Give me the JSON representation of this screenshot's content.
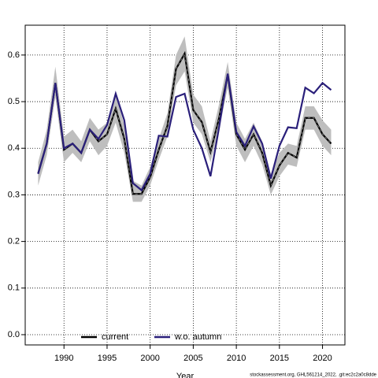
{
  "chart_data": {
    "type": "line",
    "x_label": "Year",
    "footer": "stockassessment.org, GHL561214_2022, .git:ec2c2a0c8dde",
    "x": [
      1987,
      1988,
      1989,
      1990,
      1991,
      1992,
      1993,
      1994,
      1995,
      1996,
      1997,
      1998,
      1999,
      2000,
      2001,
      2002,
      2003,
      2004,
      2005,
      2006,
      2007,
      2008,
      2009,
      2010,
      2011,
      2012,
      2013,
      2014,
      2015,
      2016,
      2017,
      2018,
      2019,
      2020,
      2021
    ],
    "series": [
      {
        "name": "current",
        "color": "#000000",
        "values": [
          0.346,
          0.41,
          0.54,
          0.397,
          0.41,
          0.39,
          0.44,
          0.415,
          0.43,
          0.485,
          0.42,
          0.302,
          0.302,
          0.338,
          0.397,
          0.448,
          0.57,
          0.603,
          0.482,
          0.456,
          0.392,
          0.465,
          0.558,
          0.43,
          0.397,
          0.43,
          0.39,
          0.32,
          0.363,
          0.39,
          0.38,
          0.465,
          0.465,
          0.43,
          0.41
        ],
        "lower": [
          0.32,
          0.385,
          0.51,
          0.37,
          0.39,
          0.37,
          0.415,
          0.385,
          0.405,
          0.455,
          0.39,
          0.285,
          0.285,
          0.32,
          0.375,
          0.425,
          0.535,
          0.565,
          0.455,
          0.43,
          0.37,
          0.44,
          0.53,
          0.405,
          0.37,
          0.405,
          0.365,
          0.3,
          0.34,
          0.365,
          0.36,
          0.44,
          0.44,
          0.405,
          0.385
        ],
        "upper": [
          0.37,
          0.44,
          0.575,
          0.425,
          0.44,
          0.415,
          0.465,
          0.44,
          0.455,
          0.515,
          0.45,
          0.33,
          0.32,
          0.36,
          0.42,
          0.475,
          0.6,
          0.64,
          0.515,
          0.49,
          0.415,
          0.495,
          0.585,
          0.455,
          0.42,
          0.455,
          0.415,
          0.345,
          0.39,
          0.41,
          0.405,
          0.49,
          0.49,
          0.46,
          0.44
        ],
        "band_color": "#bebebe"
      },
      {
        "name": "w.o. autumn",
        "color": "#2a1f7a",
        "values": [
          0.345,
          0.41,
          0.54,
          0.4,
          0.41,
          0.39,
          0.44,
          0.42,
          0.45,
          0.517,
          0.46,
          0.325,
          0.31,
          0.345,
          0.427,
          0.425,
          0.51,
          0.517,
          0.44,
          0.4,
          0.34,
          0.445,
          0.56,
          0.435,
          0.405,
          0.447,
          0.41,
          0.335,
          0.405,
          0.445,
          0.443,
          0.53,
          0.518,
          0.54,
          0.525
        ]
      }
    ],
    "xlim": [
      1985.5,
      2022.6
    ],
    "ylim": [
      -0.022,
      0.664
    ],
    "xticks": [
      1990,
      1995,
      2000,
      2005,
      2010,
      2015,
      2020
    ],
    "yticks": [
      {
        "value": 0,
        "label": "0.0"
      },
      0.1,
      0.2,
      0.3,
      0.4,
      0.5,
      0.6
    ],
    "grid": true,
    "legend": "bottom-left"
  }
}
